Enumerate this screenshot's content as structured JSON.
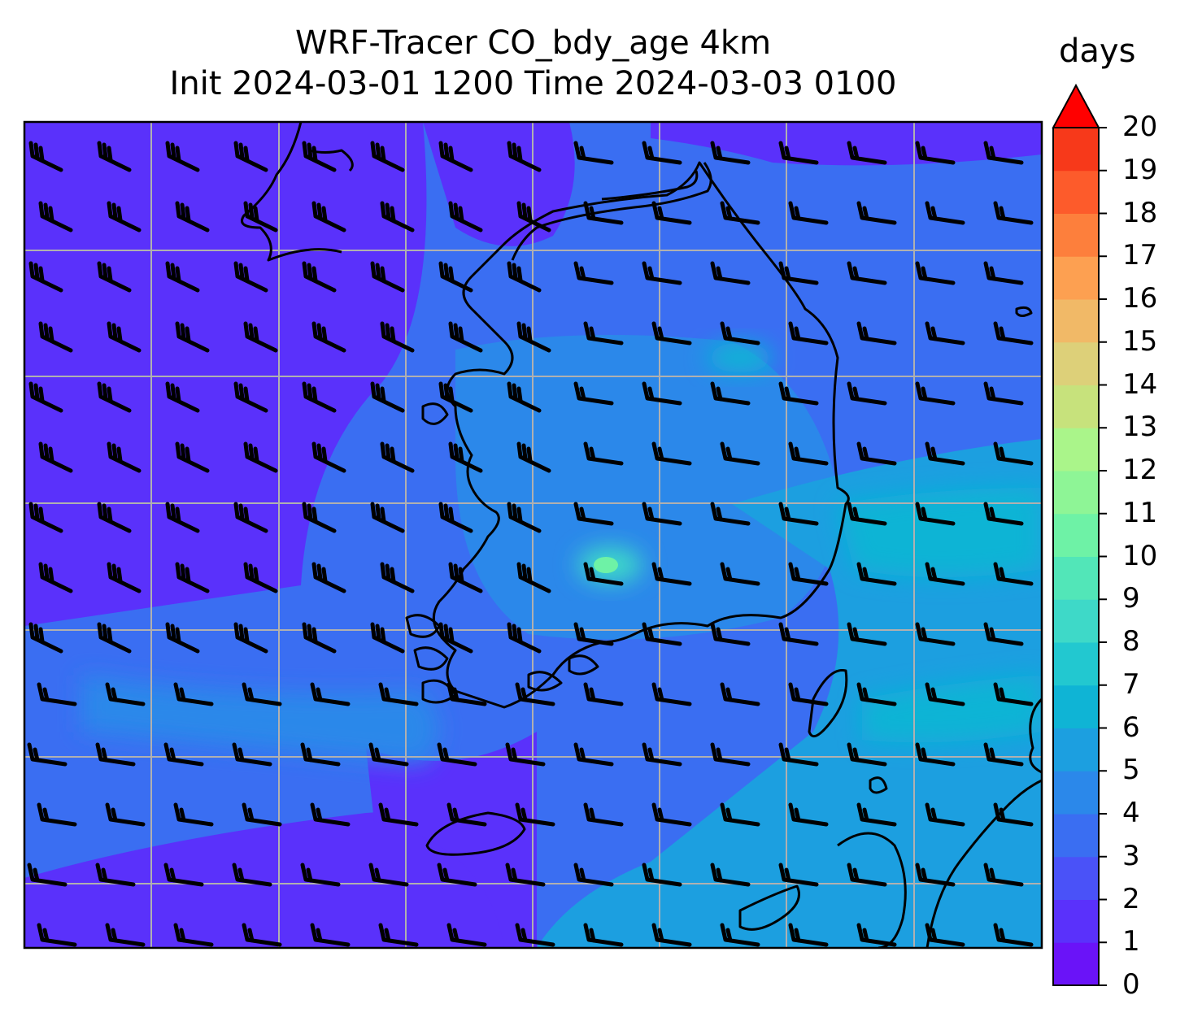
{
  "title_line1": "WRF-Tracer CO_bdy_age 4km",
  "title_line2": "Init 2024-03-01 1200 Time 2024-03-03 0100",
  "colorbar": {
    "label": "days",
    "min": 0,
    "max": 20,
    "extend": "max",
    "ticks": [
      "0",
      "1",
      "2",
      "3",
      "4",
      "5",
      "6",
      "7",
      "8",
      "9",
      "10",
      "11",
      "12",
      "13",
      "14",
      "15",
      "16",
      "17",
      "18",
      "19",
      "20"
    ],
    "colors": [
      "#6a13f8",
      "#5a31fb",
      "#4a52f8",
      "#3a6ef2",
      "#2b88ea",
      "#1c9fe0",
      "#0fb4d5",
      "#22c8d0",
      "#3ed9c8",
      "#52e6b8",
      "#6ef2a6",
      "#8ef596",
      "#aaf58a",
      "#c7e27c",
      "#ddd079",
      "#f1b967",
      "#fda051",
      "#fd7f3c",
      "#fd5b2b",
      "#f7391a",
      "#ff0000"
    ],
    "extend_color": "#ff0000"
  },
  "map": {
    "gridlines": "on",
    "features": [
      "coastlines",
      "wind barbs"
    ]
  }
}
